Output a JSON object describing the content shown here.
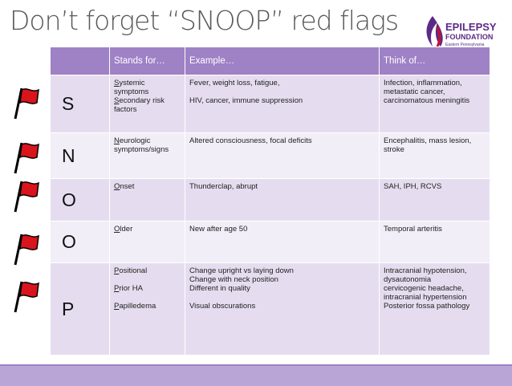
{
  "title": "Don’t forget “SNOOP” red flags",
  "logo": {
    "name": "EPILEPSY",
    "sub": "FOUNDATION",
    "region": "Eastern Pennsylvania"
  },
  "table": {
    "header": [
      "Stands for…",
      "Example…",
      "Think of…"
    ],
    "rows": [
      {
        "letter": "S",
        "stands": [
          {
            "initial": "S",
            "rest": "ystemic symptoms"
          },
          {
            "initial": "S",
            "rest": "econdary risk factors"
          }
        ],
        "example": [
          "Fever, weight loss, fatigue,",
          "HIV, cancer, immune suppression"
        ],
        "think": [
          "Infection, inflammation, metastatic cancer, carcinomatous meningitis"
        ]
      },
      {
        "letter": "N",
        "stands": [
          {
            "initial": "N",
            "rest": "eurologic symptoms/signs"
          }
        ],
        "example": [
          "Altered consciousness, focal deficits"
        ],
        "think": [
          "Encephalitis, mass lesion, stroke"
        ]
      },
      {
        "letter": "O",
        "stands": [
          {
            "initial": "O",
            "rest": "nset"
          }
        ],
        "example": [
          "Thunderclap, abrupt"
        ],
        "think": [
          "SAH, IPH, RCVS"
        ]
      },
      {
        "letter": "O",
        "stands": [
          {
            "initial": "O",
            "rest": "lder"
          }
        ],
        "example": [
          "New after age 50"
        ],
        "think": [
          "Temporal arteritis"
        ]
      },
      {
        "letter": "P",
        "stands": [
          {
            "initial": "P",
            "rest": "ositional"
          },
          {
            "initial": "P",
            "rest": "rior HA"
          },
          {
            "initial": "P",
            "rest": "apilledema"
          }
        ],
        "example": [
          "Change upright vs laying down",
          "Change with neck position",
          "Different in quality",
          "Visual obscurations"
        ],
        "think": [
          "Intracranial hypotension,",
          "dysautonomia",
          "cervicogenic headache,",
          "intracranial hypertension",
          "Posterior fossa pathology"
        ]
      }
    ]
  }
}
